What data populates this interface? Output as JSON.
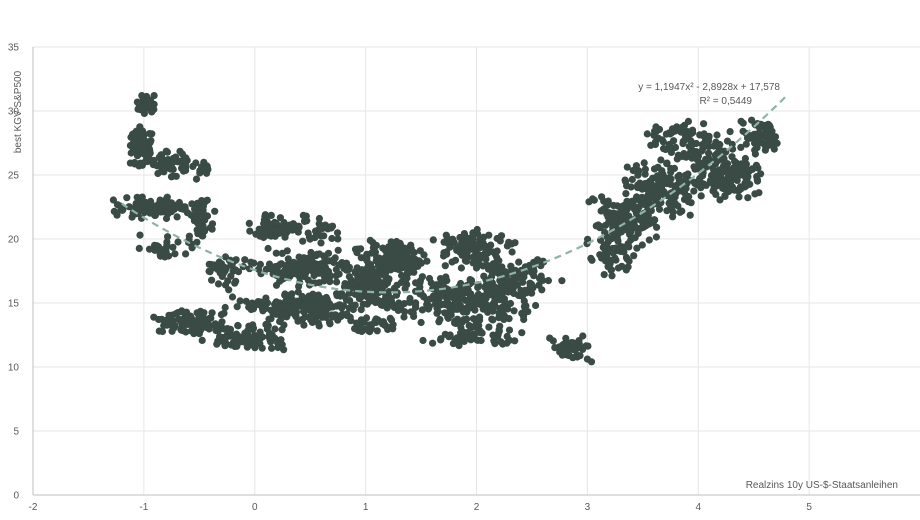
{
  "chart_data": {
    "type": "scatter",
    "title": "",
    "xlabel": "Realzins 10y US-$-Staatsanleihen",
    "ylabel": "best KGV S&P500",
    "xlim": [
      -2,
      6
    ],
    "ylim": [
      0,
      35
    ],
    "x_ticks": [
      "-2",
      "-1",
      "0",
      "1",
      "2",
      "3",
      "4",
      "5"
    ],
    "y_ticks": [
      "0",
      "5",
      "10",
      "15",
      "20",
      "25",
      "30",
      "35"
    ],
    "grid": true,
    "colors": {
      "points": "#3a4a44",
      "trendline": "#8fb3a5",
      "grid": "#e6e6e6",
      "axis": "#bfbfbf",
      "text": "#595959"
    },
    "trendline": {
      "type": "polynomial",
      "coefficients": [
        1.1947,
        -2.8928,
        17.578
      ],
      "x_range": [
        -1.2,
        4.8
      ],
      "equation_label": "y = 1,1947x² - 2,8928x + 17,578",
      "r2_label": "R² = 0,5449"
    },
    "clusters": [
      {
        "x": [
          -1.1,
          -0.85
        ],
        "y": [
          29.5,
          31.4
        ],
        "count": 30
      },
      {
        "x": [
          -1.15,
          -0.9
        ],
        "y": [
          25.5,
          29.0
        ],
        "count": 70
      },
      {
        "x": [
          -0.95,
          -0.55
        ],
        "y": [
          24.5,
          27.0
        ],
        "count": 60
      },
      {
        "x": [
          -0.55,
          -0.4
        ],
        "y": [
          24.5,
          26.2
        ],
        "count": 15
      },
      {
        "x": [
          -1.3,
          -0.45
        ],
        "y": [
          21.5,
          23.5
        ],
        "count": 90
      },
      {
        "x": [
          -0.6,
          -0.35
        ],
        "y": [
          19.5,
          23.5
        ],
        "count": 40
      },
      {
        "x": [
          -1.1,
          -0.5
        ],
        "y": [
          18.5,
          20.5
        ],
        "count": 30
      },
      {
        "x": [
          -0.55,
          0.05
        ],
        "y": [
          16.0,
          19.0
        ],
        "count": 40
      },
      {
        "x": [
          -0.95,
          -0.2
        ],
        "y": [
          12.5,
          14.5
        ],
        "count": 100
      },
      {
        "x": [
          -0.5,
          0.35
        ],
        "y": [
          11.2,
          13.5
        ],
        "count": 90
      },
      {
        "x": [
          -0.3,
          0.6
        ],
        "y": [
          14.0,
          15.5
        ],
        "count": 50
      },
      {
        "x": [
          -0.1,
          0.4
        ],
        "y": [
          19.5,
          22.0
        ],
        "count": 50
      },
      {
        "x": [
          0.0,
          0.9
        ],
        "y": [
          16.0,
          19.5
        ],
        "count": 150
      },
      {
        "x": [
          0.3,
          0.8
        ],
        "y": [
          19.5,
          22.0
        ],
        "count": 35
      },
      {
        "x": [
          0.1,
          1.0
        ],
        "y": [
          13.0,
          16.0
        ],
        "count": 150
      },
      {
        "x": [
          0.8,
          1.3
        ],
        "y": [
          14.5,
          18.5
        ],
        "count": 120
      },
      {
        "x": [
          0.9,
          1.6
        ],
        "y": [
          17.0,
          20.0
        ],
        "count": 130
      },
      {
        "x": [
          1.1,
          2.6
        ],
        "y": [
          13.0,
          17.5
        ],
        "count": 260
      },
      {
        "x": [
          1.5,
          2.4
        ],
        "y": [
          17.5,
          21.0
        ],
        "count": 110
      },
      {
        "x": [
          2.0,
          2.8
        ],
        "y": [
          15.0,
          18.8
        ],
        "count": 90
      },
      {
        "x": [
          0.8,
          1.3
        ],
        "y": [
          12.5,
          14.0
        ],
        "count": 40
      },
      {
        "x": [
          1.5,
          2.5
        ],
        "y": [
          11.5,
          13.5
        ],
        "count": 60
      },
      {
        "x": [
          2.6,
          3.1
        ],
        "y": [
          10.0,
          12.8
        ],
        "count": 40
      },
      {
        "x": [
          2.9,
          3.5
        ],
        "y": [
          17.0,
          20.5
        ],
        "count": 60
      },
      {
        "x": [
          3.0,
          3.7
        ],
        "y": [
          19.5,
          23.5
        ],
        "count": 120
      },
      {
        "x": [
          3.3,
          4.0
        ],
        "y": [
          21.5,
          26.5
        ],
        "count": 140
      },
      {
        "x": [
          3.5,
          4.4
        ],
        "y": [
          25.5,
          29.3
        ],
        "count": 100
      },
      {
        "x": [
          3.9,
          4.6
        ],
        "y": [
          23.0,
          27.0
        ],
        "count": 140
      },
      {
        "x": [
          4.3,
          4.8
        ],
        "y": [
          26.5,
          29.5
        ],
        "count": 60
      }
    ]
  }
}
